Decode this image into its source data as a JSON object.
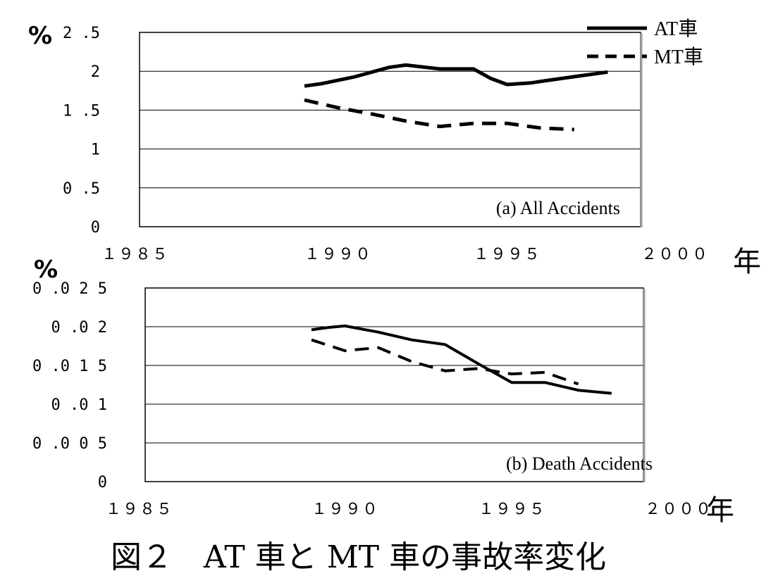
{
  "legend": {
    "at_label": "AT車",
    "mt_label": "MT車"
  },
  "caption": "図２　AT 車と MT 車の事故率変化",
  "chart_data": [
    {
      "type": "line",
      "title": "(a) All Accidents",
      "ylabel": "%",
      "xlabel": "年",
      "xlim": [
        1985,
        2000
      ],
      "ylim": [
        0,
        2.5
      ],
      "x_ticks": [
        1985,
        1990,
        1995,
        2000
      ],
      "x_tick_labels": [
        "１９８５",
        "１９９０",
        "１９９５",
        "２０００"
      ],
      "y_ticks": [
        0,
        0.5,
        1,
        1.5,
        2,
        2.5
      ],
      "y_tick_labels": [
        "0",
        "0 .5",
        "1",
        "1 .5",
        "2",
        "2 .5"
      ],
      "grid": true,
      "legend_position": "top-right",
      "series": [
        {
          "name": "AT車",
          "style": "solid",
          "x": [
            1990,
            1990.5,
            1991.5,
            1992.5,
            1993,
            1994,
            1995,
            1995.5,
            1996,
            1996.7,
            1997,
            1998,
            1999
          ],
          "y": [
            1.81,
            1.84,
            1.93,
            2.05,
            2.08,
            2.03,
            2.03,
            1.91,
            1.83,
            1.85,
            1.87,
            1.93,
            1.99
          ]
        },
        {
          "name": "MT車",
          "style": "dashed",
          "x": [
            1990,
            1991,
            1992,
            1993,
            1994,
            1994.5,
            1995,
            1996,
            1997,
            1998
          ],
          "y": [
            1.63,
            1.53,
            1.45,
            1.36,
            1.29,
            1.31,
            1.33,
            1.33,
            1.27,
            1.25
          ]
        }
      ]
    },
    {
      "type": "line",
      "title": "(b) Death Accidents",
      "ylabel": "%",
      "xlabel": "年",
      "xlim": [
        1985,
        2000
      ],
      "ylim": [
        0,
        0.025
      ],
      "x_ticks": [
        1985,
        1990,
        1995,
        2000
      ],
      "x_tick_labels": [
        "１９８５",
        "１９９０",
        "１９９５",
        "２０００"
      ],
      "y_ticks": [
        0,
        0.005,
        0.01,
        0.015,
        0.02,
        0.025
      ],
      "y_tick_labels": [
        "0",
        "0 .0 0 5",
        "0 .0 1",
        "0 .0 1 5",
        "0 .0 2",
        "0 .0 2 5"
      ],
      "grid": true,
      "series": [
        {
          "name": "AT車",
          "style": "solid",
          "x": [
            1990,
            1990.5,
            1991,
            1992,
            1993,
            1994,
            1995,
            1996,
            1997,
            1998,
            1999
          ],
          "y": [
            0.0196,
            0.0199,
            0.0201,
            0.0193,
            0.0183,
            0.0177,
            0.0152,
            0.0128,
            0.0128,
            0.0118,
            0.0114
          ]
        },
        {
          "name": "MT車",
          "style": "dashed",
          "x": [
            1990,
            1991,
            1992,
            1993,
            1994,
            1995,
            1996,
            1997,
            1998
          ],
          "y": [
            0.0183,
            0.0169,
            0.0173,
            0.0155,
            0.0143,
            0.0146,
            0.0139,
            0.0141,
            0.0126
          ]
        }
      ]
    }
  ]
}
